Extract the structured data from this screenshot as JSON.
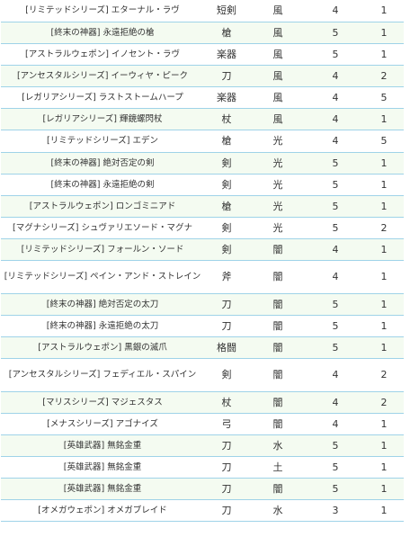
{
  "table": {
    "rows": [
      {
        "name": "[リミテッドシリーズ] エターナル・ラヴ",
        "type": "短剣",
        "element": "風",
        "rarity": "4",
        "limit": "1"
      },
      {
        "name": "[終末の神器] 永遠拒絶の槍",
        "type": "槍",
        "element": "風",
        "rarity": "5",
        "limit": "1"
      },
      {
        "name": "[アストラルウェポン] イノセント・ラヴ",
        "type": "楽器",
        "element": "風",
        "rarity": "5",
        "limit": "1"
      },
      {
        "name": "[アンセスタルシリーズ] イーウィヤ・ピーク",
        "type": "刀",
        "element": "風",
        "rarity": "4",
        "limit": "2"
      },
      {
        "name": "[レガリアシリーズ] ラストストームハープ",
        "type": "楽器",
        "element": "風",
        "rarity": "4",
        "limit": "5"
      },
      {
        "name": "[レガリアシリーズ] 輝鏡螺閃杖",
        "type": "杖",
        "element": "風",
        "rarity": "4",
        "limit": "1"
      },
      {
        "name": "[リミテッドシリーズ] エデン",
        "type": "槍",
        "element": "光",
        "rarity": "4",
        "limit": "5"
      },
      {
        "name": "[終末の神器] 絶対否定の剣",
        "type": "剣",
        "element": "光",
        "rarity": "5",
        "limit": "1"
      },
      {
        "name": "[終末の神器] 永遠拒絶の剣",
        "type": "剣",
        "element": "光",
        "rarity": "5",
        "limit": "1"
      },
      {
        "name": "[アストラルウェポン] ロンゴミニアド",
        "type": "槍",
        "element": "光",
        "rarity": "5",
        "limit": "1"
      },
      {
        "name": "[マグナシリーズ] シュヴァリエソード・マグナ",
        "type": "剣",
        "element": "光",
        "rarity": "5",
        "limit": "2"
      },
      {
        "name": "[リミテッドシリーズ] フォールン・ソード",
        "type": "剣",
        "element": "闇",
        "rarity": "4",
        "limit": "1"
      },
      {
        "name": "[リミテッドシリーズ] ペイン・アンド・ストレイン",
        "type": "斧",
        "element": "闇",
        "rarity": "4",
        "limit": "1"
      },
      {
        "name": "[終末の神器] 絶対否定の太刀",
        "type": "刀",
        "element": "闇",
        "rarity": "5",
        "limit": "1"
      },
      {
        "name": "[終末の神器] 永遠拒絶の太刀",
        "type": "刀",
        "element": "闇",
        "rarity": "5",
        "limit": "1"
      },
      {
        "name": "[アストラルウェポン] 黒銀の滅爪",
        "type": "格闘",
        "element": "闇",
        "rarity": "5",
        "limit": "1"
      },
      {
        "name": "[アンセスタルシリーズ] フェディエル・スパイン",
        "type": "剣",
        "element": "闇",
        "rarity": "4",
        "limit": "2"
      },
      {
        "name": "[マリスシリーズ] マジェスタス",
        "type": "杖",
        "element": "闇",
        "rarity": "4",
        "limit": "2"
      },
      {
        "name": "[メナスシリーズ] アゴナイズ",
        "type": "弓",
        "element": "闇",
        "rarity": "4",
        "limit": "1"
      },
      {
        "name": "[英雄武器] 無銘金重",
        "type": "刀",
        "element": "水",
        "rarity": "5",
        "limit": "1"
      },
      {
        "name": "[英雄武器] 無銘金重",
        "type": "刀",
        "element": "土",
        "rarity": "5",
        "limit": "1"
      },
      {
        "name": "[英雄武器] 無銘金重",
        "type": "刀",
        "element": "闇",
        "rarity": "5",
        "limit": "1"
      },
      {
        "name": "[オメガウェポン] オメガブレイド",
        "type": "刀",
        "element": "水",
        "rarity": "3",
        "limit": "1"
      }
    ]
  }
}
